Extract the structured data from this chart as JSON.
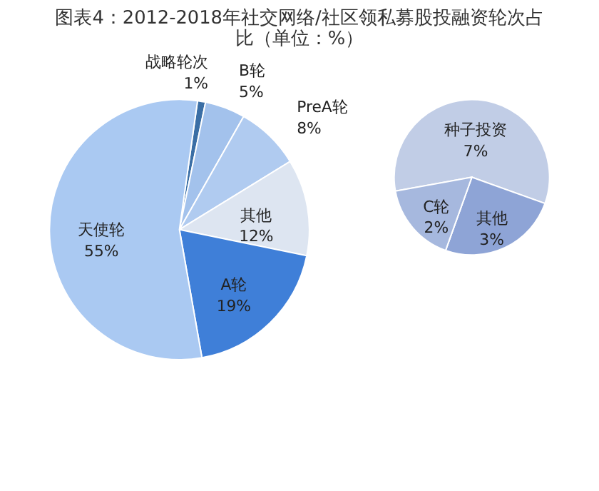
{
  "chart_data": [
    {
      "type": "pie",
      "title": "图表4：2012-2018年社交网络/社区领私募股投融资轮次占比（单位：%）",
      "categories": [
        "战略轮次",
        "B轮",
        "PreA轮",
        "其他",
        "A轮",
        "天使轮"
      ],
      "values": [
        1,
        5,
        8,
        12,
        19,
        55
      ],
      "colors": [
        "#3a6ea5",
        "#a3c2ec",
        "#b0cbf0",
        "#dde5f1",
        "#3f7fd8",
        "#aac9f2"
      ],
      "value_labels": [
        "1%",
        "5%",
        "8%",
        "12%",
        "19%",
        "55%"
      ],
      "legend": false
    },
    {
      "type": "pie",
      "categories": [
        "种子投资",
        "其他",
        "C轮"
      ],
      "values": [
        7,
        3,
        2
      ],
      "colors": [
        "#c1cde6",
        "#8ea4d6",
        "#a6b8de"
      ],
      "value_labels": [
        "7%",
        "3%",
        "2%"
      ],
      "legend": false
    }
  ]
}
